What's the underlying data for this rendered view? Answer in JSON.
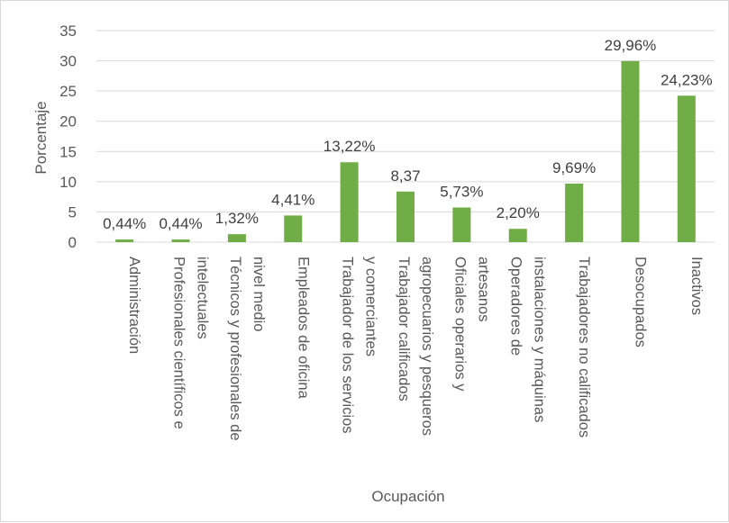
{
  "chart_data": {
    "type": "bar",
    "title": "",
    "xlabel": "Ocupación",
    "ylabel": "Porcentaje",
    "ylim": [
      0,
      35
    ],
    "yticks": [
      0,
      5,
      10,
      15,
      20,
      25,
      30,
      35
    ],
    "grid": true,
    "legend": "none",
    "bar_color": "#70ad47",
    "categories": [
      [
        "Administración"
      ],
      [
        "Profesionales científicos e",
        "intelectuales"
      ],
      [
        "Técnicos y profesionales de",
        "nivel medio"
      ],
      [
        "Empleados de oficina"
      ],
      [
        "Trabajador de los servicios",
        "y comerciantes"
      ],
      [
        "Trabajador calificados",
        "agropecuarios y pesqueros"
      ],
      [
        "Oficiales operarios y",
        "artesanos"
      ],
      [
        "Operadores de",
        "instalaciones y máquinas"
      ],
      [
        "Trabajadores no calificados"
      ],
      [
        "Desocupados"
      ],
      [
        "Inactivos"
      ]
    ],
    "values": [
      0.44,
      0.44,
      1.32,
      4.41,
      13.22,
      8.37,
      5.73,
      2.2,
      9.69,
      29.96,
      24.23
    ],
    "data_labels": [
      "0,44%",
      "0,44%",
      "1,32%",
      "4,41%",
      "13,22%",
      "8,37",
      "5,73%",
      "2,20%",
      "9,69%",
      "29,96%",
      "24,23%"
    ]
  }
}
